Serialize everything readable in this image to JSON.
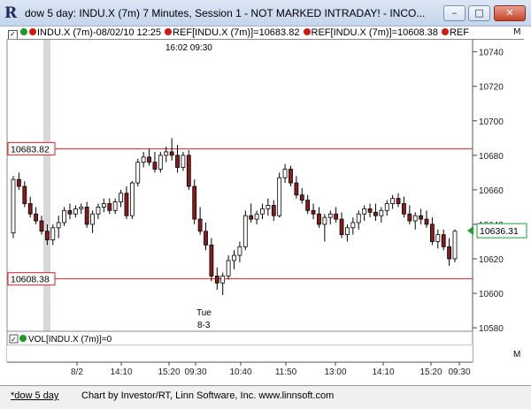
{
  "window": {
    "title": "dow 5 day: INDU.X (7m) 7 Minutes, Session 1 - NOT MARKED INTRADAY! - INCO..."
  },
  "header": {
    "symbol": "INDU.X (7m)",
    "datetime": "-08/02/10 12:25",
    "ref1": "REF[INDU.X (7m)]=10683.82",
    "ref2": "REF[INDU.X (7m)]=10608.38",
    "ref3": "REF",
    "m": "M"
  },
  "chart_data": {
    "type": "candlestick",
    "y_axis_ticks": [
      10740,
      10720,
      10700,
      10680,
      10660,
      10640,
      10620,
      10600,
      10580
    ],
    "ylim": [
      10578,
      10747
    ],
    "x_axis_ticks": [
      "8/2",
      "14:10",
      "15:20",
      "09:30",
      "10:40",
      "11:50",
      "13:00",
      "14:10",
      "15:20",
      "09:30"
    ],
    "ref_lines": [
      10683.82,
      10608.38
    ],
    "ref_labels": [
      "10683.82",
      "10608.38"
    ],
    "last_price": "10636.31",
    "session_label_top": "16:02  09:30",
    "day_label": [
      "Tue",
      "8-3"
    ],
    "candles": [
      [
        10635,
        10668,
        10632,
        10666
      ],
      [
        10666,
        10670,
        10660,
        10662
      ],
      [
        10662,
        10665,
        10650,
        10652
      ],
      [
        10652,
        10656,
        10644,
        10646
      ],
      [
        10646,
        10650,
        10640,
        10642
      ],
      [
        10642,
        10645,
        10634,
        10636
      ],
      [
        10636,
        10640,
        10628,
        10631
      ],
      [
        10631,
        10640,
        10628,
        10638
      ],
      [
        10638,
        10645,
        10632,
        10641
      ],
      [
        10641,
        10650,
        10639,
        10648
      ],
      [
        10648,
        10652,
        10643,
        10646
      ],
      [
        10646,
        10651,
        10644,
        10649
      ],
      [
        10649,
        10652,
        10646,
        10650
      ],
      [
        10650,
        10653,
        10638,
        10640
      ],
      [
        10640,
        10648,
        10635,
        10646
      ],
      [
        10646,
        10652,
        10643,
        10650
      ],
      [
        10650,
        10655,
        10647,
        10652
      ],
      [
        10652,
        10655,
        10646,
        10648
      ],
      [
        10648,
        10655,
        10646,
        10653
      ],
      [
        10653,
        10660,
        10650,
        10658
      ],
      [
        10658,
        10662,
        10643,
        10645
      ],
      [
        10645,
        10665,
        10643,
        10664
      ],
      [
        10664,
        10678,
        10662,
        10676
      ],
      [
        10676,
        10682,
        10673,
        10679
      ],
      [
        10679,
        10684,
        10674,
        10676
      ],
      [
        10676,
        10682,
        10670,
        10672
      ],
      [
        10672,
        10682,
        10670,
        10680
      ],
      [
        10680,
        10685,
        10676,
        10682
      ],
      [
        10682,
        10690,
        10677,
        10680
      ],
      [
        10680,
        10686,
        10670,
        10673
      ],
      [
        10673,
        10682,
        10671,
        10680
      ],
      [
        10680,
        10683,
        10660,
        10662
      ],
      [
        10662,
        10666,
        10640,
        10643
      ],
      [
        10643,
        10650,
        10634,
        10636
      ],
      [
        10636,
        10641,
        10625,
        10628
      ],
      [
        10628,
        10632,
        10607,
        10610
      ],
      [
        10610,
        10615,
        10602,
        10606
      ],
      [
        10606,
        10612,
        10599,
        10610
      ],
      [
        10610,
        10622,
        10608,
        10619
      ],
      [
        10619,
        10625,
        10614,
        10622
      ],
      [
        10622,
        10630,
        10618,
        10627
      ],
      [
        10627,
        10648,
        10625,
        10645
      ],
      [
        10645,
        10652,
        10641,
        10643
      ],
      [
        10643,
        10648,
        10640,
        10646
      ],
      [
        10646,
        10652,
        10643,
        10649
      ],
      [
        10649,
        10655,
        10645,
        10651
      ],
      [
        10651,
        10654,
        10642,
        10645
      ],
      [
        10645,
        10670,
        10644,
        10667
      ],
      [
        10667,
        10675,
        10664,
        10672
      ],
      [
        10672,
        10674,
        10662,
        10664
      ],
      [
        10664,
        10668,
        10655,
        10657
      ],
      [
        10657,
        10661,
        10652,
        10654
      ],
      [
        10654,
        10657,
        10646,
        10648
      ],
      [
        10648,
        10652,
        10643,
        10646
      ],
      [
        10646,
        10650,
        10638,
        10640
      ],
      [
        10640,
        10646,
        10630,
        10644
      ],
      [
        10644,
        10648,
        10640,
        10646
      ],
      [
        10646,
        10650,
        10641,
        10643
      ],
      [
        10643,
        10647,
        10632,
        10634
      ],
      [
        10634,
        10640,
        10630,
        10638
      ],
      [
        10638,
        10644,
        10634,
        10641
      ],
      [
        10641,
        10648,
        10637,
        10646
      ],
      [
        10646,
        10651,
        10642,
        10649
      ],
      [
        10649,
        10652,
        10644,
        10647
      ],
      [
        10647,
        10652,
        10642,
        10645
      ],
      [
        10645,
        10650,
        10641,
        10648
      ],
      [
        10648,
        10654,
        10645,
        10652
      ],
      [
        10652,
        10657,
        10649,
        10655
      ],
      [
        10655,
        10658,
        10650,
        10652
      ],
      [
        10652,
        10656,
        10644,
        10646
      ],
      [
        10646,
        10651,
        10640,
        10642
      ],
      [
        10642,
        10647,
        10637,
        10645
      ],
      [
        10645,
        10649,
        10640,
        10643
      ],
      [
        10643,
        10648,
        10638,
        10640
      ],
      [
        10640,
        10644,
        10628,
        10630
      ],
      [
        10630,
        10637,
        10626,
        10634
      ],
      [
        10634,
        10637,
        10625,
        10627
      ],
      [
        10627,
        10632,
        10616,
        10620
      ],
      [
        10620,
        10637,
        10618,
        10636
      ]
    ]
  },
  "volume_panel": {
    "label": "VOL[INDU.X (7m)]=0",
    "m": "M"
  },
  "footer": {
    "tab": "*dow 5 day",
    "credit": "Chart by Investor/RT, Linn Software, Inc. www.linnsoft.com"
  }
}
